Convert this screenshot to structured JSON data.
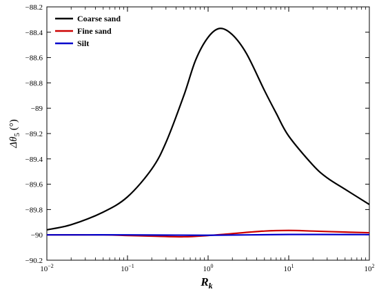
{
  "chart_data": {
    "type": "line",
    "x_scale": "log",
    "xlim": [
      0.01,
      100
    ],
    "ylim": [
      -90.2,
      -88.2
    ],
    "xlabel": {
      "main": "R",
      "sub": "k"
    },
    "ylabel": {
      "main": "Δθ",
      "sub": "5",
      "unit": " (°)"
    },
    "x_ticks": [
      {
        "value": 0.01,
        "base": "10",
        "exp": "−2"
      },
      {
        "value": 0.1,
        "base": "10",
        "exp": "−1"
      },
      {
        "value": 1,
        "base": "10",
        "exp": "0"
      },
      {
        "value": 10,
        "base": "10",
        "exp": "1"
      },
      {
        "value": 100,
        "base": "10",
        "exp": "2"
      }
    ],
    "y_ticks": [
      {
        "value": -88.2,
        "label": "−88.2"
      },
      {
        "value": -88.4,
        "label": "−88.4"
      },
      {
        "value": -88.6,
        "label": "−88.6"
      },
      {
        "value": -88.8,
        "label": "−88.8"
      },
      {
        "value": -89.0,
        "label": "−89"
      },
      {
        "value": -89.2,
        "label": "−89.2"
      },
      {
        "value": -89.4,
        "label": "−89.4"
      },
      {
        "value": -89.6,
        "label": "−89.6"
      },
      {
        "value": -89.8,
        "label": "−89.8"
      },
      {
        "value": -90.0,
        "label": "−90"
      },
      {
        "value": -90.2,
        "label": "−90.2"
      }
    ],
    "grid": false,
    "legend_position": "top-left",
    "series": [
      {
        "name": "Coarse sand",
        "color": "#000000",
        "x": [
          0.01,
          0.02,
          0.05,
          0.1,
          0.2,
          0.3,
          0.5,
          0.7,
          1.0,
          1.4,
          2.0,
          3.0,
          5.0,
          7.0,
          10,
          20,
          30,
          50,
          100
        ],
        "y": [
          -89.96,
          -89.92,
          -89.82,
          -89.7,
          -89.48,
          -89.27,
          -88.9,
          -88.62,
          -88.44,
          -88.37,
          -88.42,
          -88.57,
          -88.86,
          -89.04,
          -89.22,
          -89.45,
          -89.55,
          -89.64,
          -89.76
        ]
      },
      {
        "name": "Fine sand",
        "color": "#cc0000",
        "x": [
          0.01,
          0.05,
          0.1,
          0.2,
          0.5,
          1.0,
          2.0,
          5.0,
          10,
          20,
          50,
          100
        ],
        "y": [
          -90.0,
          -90.0,
          -90.005,
          -90.01,
          -90.015,
          -90.005,
          -89.99,
          -89.97,
          -89.965,
          -89.97,
          -89.978,
          -89.983
        ]
      },
      {
        "name": "Silt",
        "color": "#0000cc",
        "x": [
          0.01,
          0.1,
          1.0,
          10,
          100
        ],
        "y": [
          -90.0,
          -90.0,
          -90.003,
          -89.997,
          -89.998
        ]
      }
    ]
  }
}
